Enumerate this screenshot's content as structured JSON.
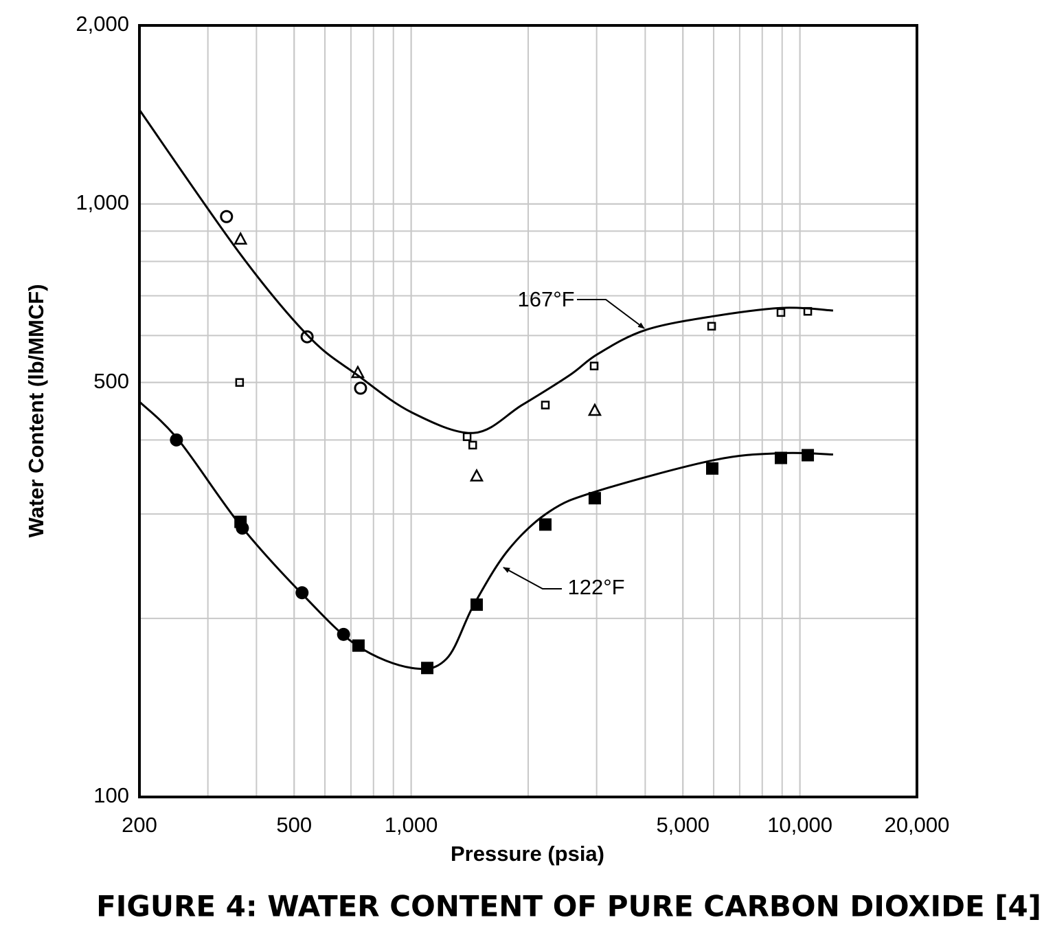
{
  "chart_data": {
    "type": "scatter",
    "caption": "FIGURE 4: WATER CONTENT OF PURE CARBON DIOXIDE [4]",
    "x_label": "Pressure (psia)",
    "y_label": "Water Content (lb/MMCF)",
    "log_x": true,
    "log_y": true,
    "grid": true,
    "xlim": [
      200,
      20000
    ],
    "ylim": [
      100,
      2000
    ],
    "xticks": [
      200,
      500,
      {
        "value": 1000,
        "label": "1,000"
      },
      {
        "value": 5000,
        "label": "5,000"
      },
      {
        "value": 10000,
        "label": "10,000"
      },
      {
        "value": 20000,
        "label": "20,000"
      }
    ],
    "yticks": [
      100,
      500,
      {
        "value": 1000,
        "label": "1,000"
      },
      {
        "value": 2000,
        "label": "2,000"
      }
    ],
    "series": [
      {
        "name": "167°F",
        "mark": "line",
        "color": "#000000",
        "x": [
          200,
          364,
          546,
          726,
          1004,
          1450,
          1928,
          2564,
          3015,
          4009,
          6025,
          9040,
          12170
        ],
        "values": [
          1441,
          822,
          597,
          515,
          445,
          411,
          458,
          515,
          558,
          613,
          647,
          668,
          661
        ]
      },
      {
        "name": "122°F",
        "mark": "line",
        "color": "#000000",
        "x": [
          200,
          252,
          364,
          524,
          726,
          1004,
          1233,
          1450,
          1778,
          2270,
          3015,
          6025,
          9040,
          12170
        ],
        "values": [
          464,
          400,
          287,
          220,
          180,
          165,
          171,
          211,
          261,
          303,
          328,
          370,
          380,
          378
        ]
      },
      {
        "mark": "open-circle",
        "color": "#000000",
        "x": [
          335,
          540,
          741
        ],
        "values": [
          952,
          597,
          489
        ]
      },
      {
        "mark": "open-triangle",
        "color": "#000000",
        "x": [
          364,
          729,
          1474,
          2967
        ],
        "values": [
          873,
          520,
          348,
          449
        ]
      },
      {
        "mark": "open-square",
        "color": "#000000",
        "x": [
          362,
          1393,
          1440,
          2214,
          2956,
          5928,
          8937,
          10476
        ],
        "values": [
          500,
          405,
          392,
          458,
          533,
          622,
          656,
          659
        ]
      },
      {
        "mark": "filled-circle",
        "color": "#000000",
        "x": [
          249,
          368,
          524,
          670
        ],
        "values": [
          400,
          284,
          221,
          188
        ]
      },
      {
        "mark": "filled-square",
        "color": "#000000",
        "x": [
          364,
          732,
          1100,
          1474,
          2214,
          2967,
          5950,
          8937,
          10476
        ],
        "values": [
          291,
          180,
          165,
          211,
          288,
          319,
          358,
          373,
          377
        ]
      }
    ]
  }
}
